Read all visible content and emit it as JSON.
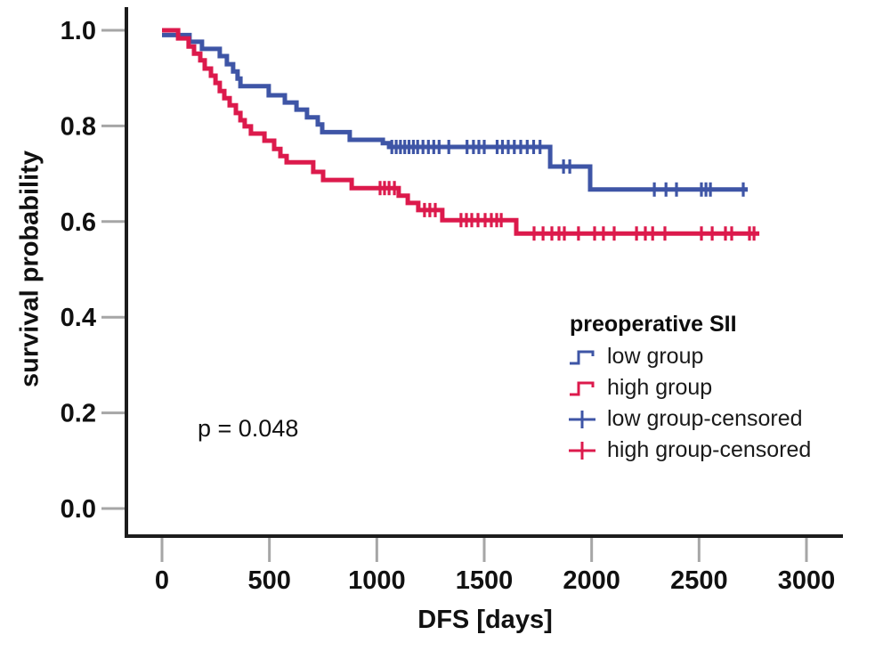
{
  "figure": {
    "p_value_label": "p = 0.048",
    "x_axis_label": "DFS [days]",
    "y_axis_label": "survival probability"
  },
  "legend": {
    "title": "preoperative SII",
    "entries": [
      {
        "label": "low group",
        "symbol": "step-line",
        "color": "#3E55A6"
      },
      {
        "label": "high group",
        "symbol": "step-line",
        "color": "#DC1A4C"
      },
      {
        "label": "low group-censored",
        "symbol": "plus-cross",
        "color": "#3E55A6"
      },
      {
        "label": "high group-censored",
        "symbol": "plus-cross",
        "color": "#DC1A4C"
      }
    ]
  },
  "chart_data": {
    "type": "line",
    "subtype": "kaplan-meier-step",
    "title": "",
    "xlabel": "DFS [days]",
    "ylabel": "survival probability",
    "xlim": [
      0,
      3000
    ],
    "ylim": [
      0.0,
      1.0
    ],
    "grid": false,
    "legend_position": "inside-right",
    "annotation": "p = 0.048",
    "x_ticks": [
      {
        "value": 0,
        "label": "0"
      },
      {
        "value": 500,
        "label": "500"
      },
      {
        "value": 1000,
        "label": "1000"
      },
      {
        "value": 1500,
        "label": "1500"
      },
      {
        "value": 2000,
        "label": "2000"
      },
      {
        "value": 2500,
        "label": "2500"
      },
      {
        "value": 3000,
        "label": "3000"
      }
    ],
    "y_ticks": [
      {
        "value": 0.0,
        "label": "0.0"
      },
      {
        "value": 0.2,
        "label": "0.2"
      },
      {
        "value": 0.4,
        "label": "0.4"
      },
      {
        "value": 0.6,
        "label": "0.6"
      },
      {
        "value": 0.8,
        "label": "0.8"
      },
      {
        "value": 1.0,
        "label": "1.0"
      }
    ],
    "series": [
      {
        "name": "low group",
        "color": "#3E55A6",
        "end_day": 2727,
        "step_points": [
          [
            0,
            0.99
          ],
          [
            128,
            0.976
          ],
          [
            186,
            0.961
          ],
          [
            269,
            0.946
          ],
          [
            302,
            0.929
          ],
          [
            331,
            0.914
          ],
          [
            352,
            0.899
          ],
          [
            365,
            0.883
          ],
          [
            497,
            0.864
          ],
          [
            572,
            0.849
          ],
          [
            626,
            0.834
          ],
          [
            675,
            0.818
          ],
          [
            725,
            0.803
          ],
          [
            746,
            0.787
          ],
          [
            874,
            0.771
          ],
          [
            1028,
            0.764
          ],
          [
            1057,
            0.756
          ],
          [
            1807,
            0.715
          ],
          [
            1993,
            0.667
          ]
        ],
        "censored": [
          [
            1070,
            0.756
          ],
          [
            1090,
            0.756
          ],
          [
            1110,
            0.756
          ],
          [
            1130,
            0.756
          ],
          [
            1150,
            0.756
          ],
          [
            1170,
            0.756
          ],
          [
            1190,
            0.756
          ],
          [
            1215,
            0.756
          ],
          [
            1240,
            0.756
          ],
          [
            1265,
            0.756
          ],
          [
            1290,
            0.756
          ],
          [
            1335,
            0.756
          ],
          [
            1420,
            0.756
          ],
          [
            1450,
            0.756
          ],
          [
            1475,
            0.756
          ],
          [
            1500,
            0.756
          ],
          [
            1560,
            0.756
          ],
          [
            1585,
            0.756
          ],
          [
            1612,
            0.756
          ],
          [
            1640,
            0.756
          ],
          [
            1670,
            0.756
          ],
          [
            1700,
            0.756
          ],
          [
            1730,
            0.756
          ],
          [
            1760,
            0.756
          ],
          [
            1869,
            0.715
          ],
          [
            1898,
            0.715
          ],
          [
            2292,
            0.667
          ],
          [
            2346,
            0.667
          ],
          [
            2395,
            0.667
          ],
          [
            2511,
            0.667
          ],
          [
            2532,
            0.667
          ],
          [
            2553,
            0.667
          ],
          [
            2706,
            0.667
          ]
        ]
      },
      {
        "name": "high group",
        "color": "#DC1A4C",
        "end_day": 2781,
        "step_points": [
          [
            0,
            1.0
          ],
          [
            75,
            0.983
          ],
          [
            124,
            0.966
          ],
          [
            149,
            0.951
          ],
          [
            178,
            0.937
          ],
          [
            199,
            0.92
          ],
          [
            228,
            0.905
          ],
          [
            249,
            0.89
          ],
          [
            269,
            0.873
          ],
          [
            290,
            0.858
          ],
          [
            315,
            0.843
          ],
          [
            344,
            0.827
          ],
          [
            365,
            0.812
          ],
          [
            385,
            0.799
          ],
          [
            414,
            0.784
          ],
          [
            477,
            0.769
          ],
          [
            522,
            0.752
          ],
          [
            551,
            0.737
          ],
          [
            580,
            0.724
          ],
          [
            704,
            0.704
          ],
          [
            750,
            0.687
          ],
          [
            883,
            0.67
          ],
          [
            1102,
            0.654
          ],
          [
            1144,
            0.639
          ],
          [
            1193,
            0.624
          ],
          [
            1305,
            0.603
          ],
          [
            1649,
            0.575
          ]
        ],
        "censored": [
          [
            1015,
            0.67
          ],
          [
            1036,
            0.67
          ],
          [
            1057,
            0.67
          ],
          [
            1082,
            0.67
          ],
          [
            1222,
            0.624
          ],
          [
            1247,
            0.624
          ],
          [
            1272,
            0.624
          ],
          [
            1392,
            0.603
          ],
          [
            1417,
            0.603
          ],
          [
            1442,
            0.603
          ],
          [
            1471,
            0.603
          ],
          [
            1504,
            0.603
          ],
          [
            1533,
            0.603
          ],
          [
            1558,
            0.603
          ],
          [
            1579,
            0.603
          ],
          [
            1732,
            0.575
          ],
          [
            1774,
            0.575
          ],
          [
            1815,
            0.575
          ],
          [
            1848,
            0.575
          ],
          [
            1873,
            0.575
          ],
          [
            1939,
            0.575
          ],
          [
            2014,
            0.575
          ],
          [
            2055,
            0.575
          ],
          [
            2105,
            0.575
          ],
          [
            2209,
            0.575
          ],
          [
            2250,
            0.575
          ],
          [
            2284,
            0.575
          ],
          [
            2341,
            0.575
          ],
          [
            2511,
            0.575
          ],
          [
            2561,
            0.575
          ],
          [
            2623,
            0.575
          ],
          [
            2652,
            0.575
          ],
          [
            2735,
            0.575
          ],
          [
            2756,
            0.575
          ]
        ]
      }
    ]
  }
}
